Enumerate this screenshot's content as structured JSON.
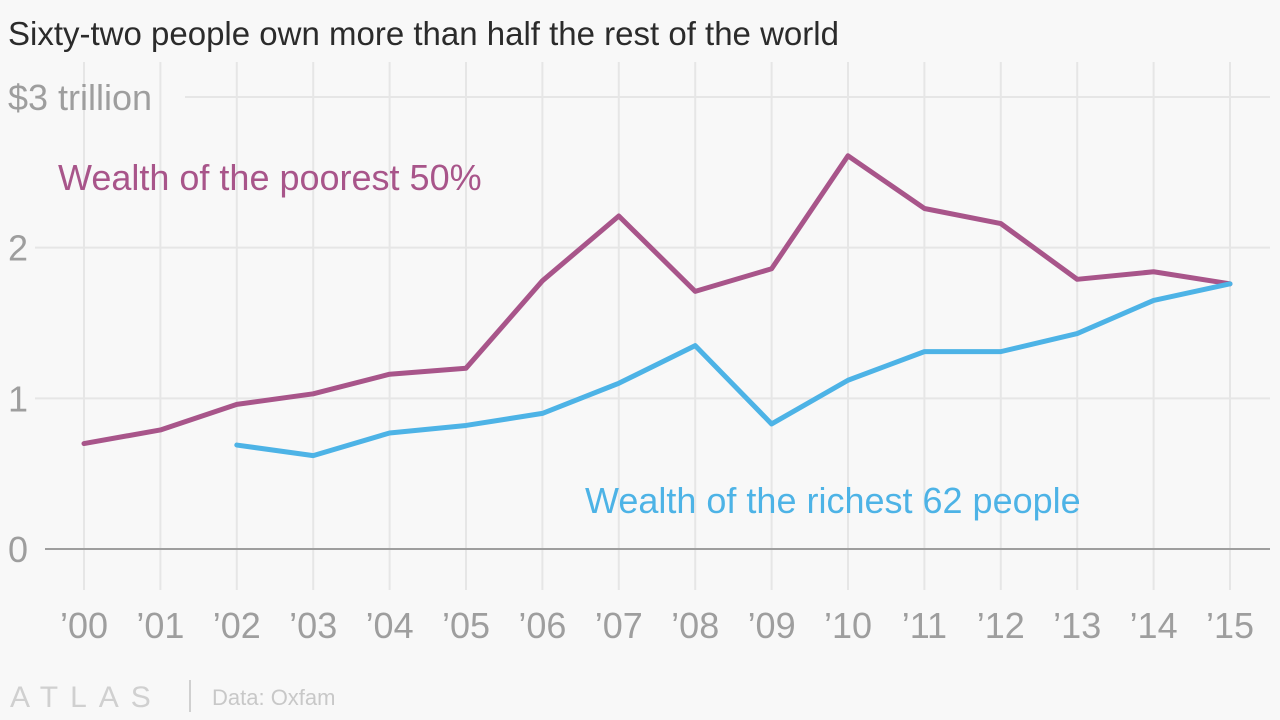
{
  "chart_data": {
    "type": "line",
    "title": "Sixty-two people own more than half the rest of the world",
    "xlabel": "",
    "ylabel": "",
    "ylim": [
      0,
      3
    ],
    "y_ticks": [
      {
        "value": 0,
        "label": "0"
      },
      {
        "value": 1,
        "label": "1"
      },
      {
        "value": 2,
        "label": "2"
      },
      {
        "value": 3,
        "label": "$3 trillion"
      }
    ],
    "x": [
      2000,
      2001,
      2002,
      2003,
      2004,
      2005,
      2006,
      2007,
      2008,
      2009,
      2010,
      2011,
      2012,
      2013,
      2014,
      2015
    ],
    "x_tick_labels": [
      "’00",
      "’01",
      "’02",
      "’03",
      "’04",
      "’05",
      "’06",
      "’07",
      "’08",
      "’09",
      "’10",
      "’11",
      "’12",
      "’13",
      "’14",
      "’15"
    ],
    "grid": true,
    "series": [
      {
        "name": "Wealth of the poorest 50%",
        "color": "#a8558a",
        "values": [
          0.7,
          0.79,
          0.96,
          1.03,
          1.16,
          1.2,
          1.78,
          2.21,
          1.71,
          1.86,
          2.61,
          2.26,
          2.16,
          1.79,
          1.84,
          1.76
        ]
      },
      {
        "name": "Wealth of the richest 62 people",
        "color": "#4db3e6",
        "values": [
          null,
          null,
          0.69,
          0.62,
          0.77,
          0.82,
          0.9,
          1.1,
          1.35,
          0.83,
          1.12,
          1.31,
          1.31,
          1.43,
          1.65,
          1.76
        ]
      }
    ]
  },
  "footer": {
    "logo": "ATLAS",
    "source": "Data: Oxfam"
  }
}
